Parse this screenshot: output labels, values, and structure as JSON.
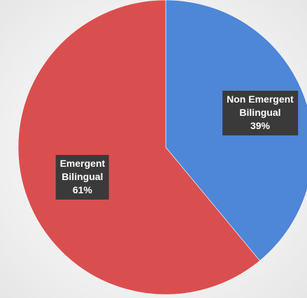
{
  "chart_data": {
    "type": "pie",
    "title": "",
    "start_angle_deg": 0,
    "direction": "clockwise",
    "legend": "none",
    "slices": [
      {
        "label_lines": [
          "Non Emergent",
          "Bilingual"
        ],
        "value": 39,
        "value_label": "39%",
        "color": "#4e86d8"
      },
      {
        "label_lines": [
          "Emergent",
          "Bilingual"
        ],
        "value": 61,
        "value_label": "61%",
        "color": "#d94f4f"
      }
    ]
  }
}
